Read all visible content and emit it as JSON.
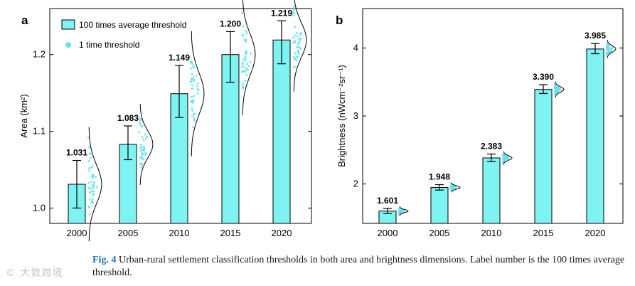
{
  "chart_data": [
    {
      "panel": "a",
      "type": "bar",
      "categories": [
        "2000",
        "2005",
        "2010",
        "2015",
        "2020"
      ],
      "values": [
        1.031,
        1.083,
        1.149,
        1.2,
        1.219
      ],
      "value_labels": [
        "1.031",
        "1.083",
        "1.149",
        "1.200",
        "1.219"
      ],
      "error_low": [
        1.0,
        1.063,
        1.118,
        1.164,
        1.188
      ],
      "error_high": [
        1.062,
        1.107,
        1.186,
        1.23,
        1.244
      ],
      "ylabel": "Area (km²)",
      "ylim": [
        0.98,
        1.26
      ],
      "yticks": [
        1.0,
        1.1,
        1.2
      ],
      "ytick_labels": [
        "1.0",
        "1.1",
        "1.2"
      ],
      "legend": {
        "placement": "top-left",
        "entries": [
          "100 times average threshold",
          "1 time threshold"
        ]
      },
      "bar_color": "#7ff2f2",
      "point_color": "#66e0ee"
    },
    {
      "panel": "b",
      "type": "bar",
      "categories": [
        "2000",
        "2005",
        "2010",
        "2015",
        "2020"
      ],
      "values": [
        1.601,
        1.948,
        2.383,
        3.39,
        3.985
      ],
      "value_labels": [
        "1.601",
        "1.948",
        "2.383",
        "3.390",
        "3.985"
      ],
      "error_low": [
        1.565,
        1.91,
        2.33,
        3.33,
        3.915
      ],
      "error_high": [
        1.64,
        1.99,
        2.44,
        3.46,
        4.065
      ],
      "ylabel": "Brightness (nWcm⁻²sr⁻¹)",
      "ylim": [
        1.42,
        4.58
      ],
      "yticks": [
        2,
        3,
        4
      ],
      "ytick_labels": [
        "2",
        "3",
        "4"
      ],
      "bar_color": "#7ff2f2",
      "point_color": "#66e0ee"
    }
  ],
  "caption": {
    "figure_label": "Fig. 4",
    "text": "Urban-rural settlement classification thresholds in both area and brightness dimensions. Label number is the 100 times average threshold."
  },
  "watermark": "© 大数跨境"
}
